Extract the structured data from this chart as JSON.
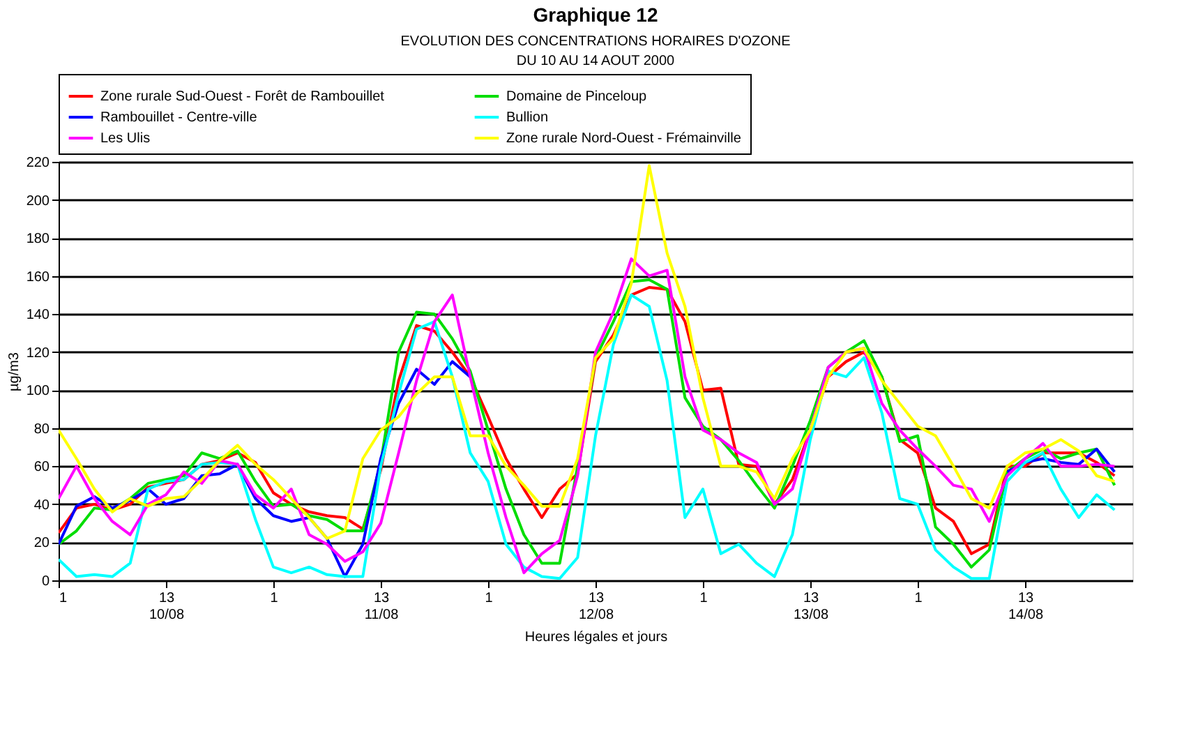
{
  "chart_data": {
    "type": "line",
    "title": "EVOLUTION DES CONCENTRATIONS HORAIRES D'OZONE",
    "subtitle": "DU 10 AU 14 AOUT 2000",
    "annotations": [
      "Graphique 12"
    ],
    "xlabel": "Heures légales et jours",
    "ylabel": "µg/m3",
    "x": [
      "2000-08-10T01:00",
      "2000-08-10T03:00",
      "2000-08-10T05:00",
      "2000-08-10T07:00",
      "2000-08-10T09:00",
      "2000-08-10T11:00",
      "2000-08-10T13:00",
      "2000-08-10T15:00",
      "2000-08-10T17:00",
      "2000-08-10T19:00",
      "2000-08-10T21:00",
      "2000-08-10T23:00",
      "2000-08-11T01:00",
      "2000-08-11T03:00",
      "2000-08-11T05:00",
      "2000-08-11T07:00",
      "2000-08-11T09:00",
      "2000-08-11T11:00",
      "2000-08-11T13:00",
      "2000-08-11T15:00",
      "2000-08-11T17:00",
      "2000-08-11T19:00",
      "2000-08-11T21:00",
      "2000-08-11T23:00",
      "2000-08-12T01:00",
      "2000-08-12T03:00",
      "2000-08-12T05:00",
      "2000-08-12T07:00",
      "2000-08-12T09:00",
      "2000-08-12T11:00",
      "2000-08-12T13:00",
      "2000-08-12T15:00",
      "2000-08-12T17:00",
      "2000-08-12T19:00",
      "2000-08-12T21:00",
      "2000-08-12T23:00",
      "2000-08-13T01:00",
      "2000-08-13T03:00",
      "2000-08-13T05:00",
      "2000-08-13T07:00",
      "2000-08-13T09:00",
      "2000-08-13T11:00",
      "2000-08-13T13:00",
      "2000-08-13T15:00",
      "2000-08-13T17:00",
      "2000-08-13T19:00",
      "2000-08-13T21:00",
      "2000-08-13T23:00",
      "2000-08-14T01:00",
      "2000-08-14T03:00",
      "2000-08-14T05:00",
      "2000-08-14T07:00",
      "2000-08-14T09:00",
      "2000-08-14T11:00",
      "2000-08-14T13:00",
      "2000-08-14T15:00",
      "2000-08-14T17:00",
      "2000-08-14T19:00",
      "2000-08-14T21:00",
      "2000-08-14T23:00"
    ],
    "xlim": [
      "2000-08-10T01:00",
      "2000-08-15T01:00"
    ],
    "xticks": [
      {
        "value": "2000-08-10T01:00",
        "label": "1"
      },
      {
        "value": "2000-08-10T13:00",
        "label": "13\n10/08"
      },
      {
        "value": "2000-08-11T01:00",
        "label": "1"
      },
      {
        "value": "2000-08-11T13:00",
        "label": "13\n11/08"
      },
      {
        "value": "2000-08-12T01:00",
        "label": "1"
      },
      {
        "value": "2000-08-12T13:00",
        "label": "13\n12/08"
      },
      {
        "value": "2000-08-13T01:00",
        "label": "1"
      },
      {
        "value": "2000-08-13T13:00",
        "label": "13\n13/08"
      },
      {
        "value": "2000-08-14T01:00",
        "label": "1"
      },
      {
        "value": "2000-08-14T13:00",
        "label": "13\n14/08"
      }
    ],
    "ylim": [
      0,
      220
    ],
    "yticks": [
      0,
      20,
      40,
      60,
      80,
      100,
      120,
      140,
      160,
      180,
      200,
      220
    ],
    "grid": "y",
    "legend": "top",
    "line_style": "solid",
    "marker": "none",
    "series": [
      {
        "name": "Zone rurale Sud-Ouest - Forêt de Rambouillet",
        "color": "#ff0000",
        "values": [
          25,
          38,
          40,
          37,
          40,
          49,
          51,
          53,
          61,
          63,
          67,
          62,
          46,
          40,
          36,
          34,
          33,
          27,
          58,
          105,
          134,
          131,
          120,
          107,
          86,
          64,
          48,
          33,
          48,
          56,
          115,
          129,
          150,
          154,
          153,
          136,
          100,
          101,
          61,
          60,
          40,
          53,
          79,
          107,
          115,
          120,
          107,
          74,
          67,
          38,
          31,
          14,
          19,
          60,
          60,
          67,
          67,
          67,
          62,
          55
        ]
      },
      {
        "name": "Domaine de Pinceloup",
        "color": "#00dd00",
        "values": [
          19,
          26,
          38,
          37,
          43,
          51,
          53,
          55,
          67,
          64,
          68,
          52,
          39,
          40,
          34,
          32,
          26,
          26,
          62,
          120,
          141,
          140,
          127,
          110,
          79,
          48,
          24,
          9,
          9,
          60,
          117,
          136,
          157,
          158,
          153,
          96,
          81,
          74,
          63,
          50,
          38,
          60,
          84,
          112,
          120,
          126,
          107,
          73,
          76,
          28,
          19,
          7,
          16,
          57,
          64,
          69,
          64,
          67,
          69,
          50
        ]
      },
      {
        "name": "Rambouillet  - Centre-ville",
        "color": "#0000ff",
        "values": [
          19,
          39,
          44,
          38,
          42,
          48,
          40,
          43,
          55,
          56,
          61,
          43,
          34,
          31,
          33,
          22,
          2,
          19,
          64,
          93,
          111,
          103,
          115,
          107,
          null,
          null,
          null,
          null,
          null,
          null,
          null,
          null,
          null,
          null,
          null,
          null,
          null,
          null,
          null,
          null,
          null,
          null,
          null,
          null,
          null,
          null,
          null,
          null,
          null,
          null,
          null,
          null,
          null,
          57,
          62,
          64,
          62,
          61,
          69,
          57
        ]
      },
      {
        "name": "Bullion",
        "color": "#00ffff",
        "values": [
          11,
          2,
          3,
          2,
          9,
          48,
          52,
          53,
          61,
          62,
          61,
          32,
          7,
          4,
          7,
          3,
          2,
          2,
          60,
          98,
          132,
          136,
          107,
          67,
          52,
          19,
          7,
          2,
          1,
          12,
          76,
          124,
          150,
          144,
          105,
          33,
          48,
          14,
          19,
          9,
          2,
          24,
          74,
          110,
          107,
          117,
          88,
          43,
          40,
          16,
          7,
          1,
          1,
          52,
          62,
          67,
          48,
          33,
          45,
          37
        ]
      },
      {
        "name": "Les Ulis",
        "color": "#ff00ff",
        "values": [
          43,
          60,
          43,
          31,
          24,
          40,
          45,
          57,
          51,
          63,
          61,
          45,
          38,
          48,
          24,
          19,
          10,
          15,
          30,
          67,
          105,
          136,
          150,
          107,
          67,
          33,
          4,
          14,
          21,
          55,
          120,
          141,
          169,
          160,
          163,
          107,
          79,
          74,
          67,
          62,
          40,
          48,
          79,
          112,
          120,
          122,
          93,
          79,
          69,
          60,
          50,
          48,
          31,
          55,
          64,
          72,
          60,
          60,
          61,
          60
        ]
      },
      {
        "name": "Zone rurale Nord-Ouest - Frémainville",
        "color": "#ffff00",
        "values": [
          79,
          64,
          48,
          36,
          43,
          39,
          43,
          44,
          53,
          63,
          71,
          61,
          53,
          43,
          33,
          22,
          26,
          64,
          79,
          86,
          98,
          107,
          107,
          76,
          76,
          60,
          50,
          39,
          39,
          64,
          117,
          127,
          156,
          218,
          172,
          144,
          96,
          60,
          60,
          57,
          43,
          64,
          79,
          107,
          120,
          122,
          105,
          93,
          81,
          76,
          60,
          43,
          38,
          60,
          67,
          69,
          74,
          68,
          55,
          52
        ]
      }
    ]
  }
}
